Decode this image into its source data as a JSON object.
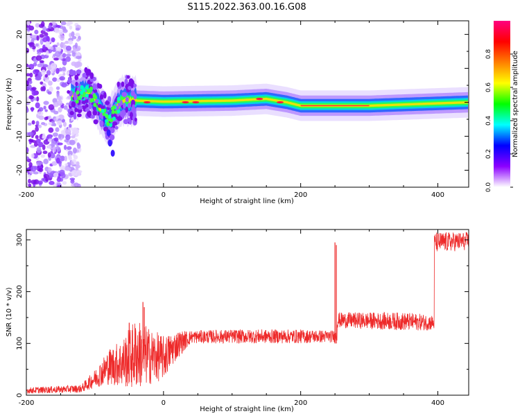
{
  "title": "S115.2022.363.00.16.G08",
  "chart_data": [
    {
      "type": "heatmap",
      "xlabel": "Height of straight line (km)",
      "ylabel": "Frequency (Hz)",
      "xlim": [
        -200,
        445
      ],
      "ylim": [
        -25,
        24
      ],
      "xticks": [
        -200,
        0,
        200,
        400
      ],
      "yticks": [
        -20,
        -10,
        0,
        10,
        20
      ],
      "colorbar": {
        "label": "Normalized spectral amplitude",
        "range": [
          0,
          1
        ],
        "ticks": [
          0.0,
          0.2,
          0.4,
          0.6,
          0.8
        ],
        "tick_labels": [
          "0.0",
          "0.2",
          "0.4",
          "0.6",
          "0.8"
        ],
        "colormap": [
          "#ffffff",
          "#8c00ff",
          "#0000ff",
          "#00ffff",
          "#00ff00",
          "#ffff00",
          "#ff7f00",
          "#ff0000",
          "#ff0080"
        ]
      },
      "ridge": [
        {
          "x": -130,
          "f": 2
        },
        {
          "x": -110,
          "f": 3
        },
        {
          "x": -100,
          "f": 1
        },
        {
          "x": -90,
          "f": -3
        },
        {
          "x": -80,
          "f": -6
        },
        {
          "x": -70,
          "f": -2
        },
        {
          "x": -60,
          "f": 0.5
        },
        {
          "x": -40,
          "f": 0.5
        },
        {
          "x": 0,
          "f": 0.2
        },
        {
          "x": 100,
          "f": 0.5
        },
        {
          "x": 150,
          "f": 1
        },
        {
          "x": 180,
          "f": 0
        },
        {
          "x": 200,
          "f": -1
        },
        {
          "x": 300,
          "f": -1
        },
        {
          "x": 445,
          "f": 0
        }
      ],
      "hotspots": [
        {
          "x": -24,
          "f": 0
        },
        {
          "x": 32,
          "f": 0
        },
        {
          "x": 47,
          "f": 0
        },
        {
          "x": 140,
          "f": 1
        },
        {
          "x": 170,
          "f": 0
        }
      ],
      "branch": [
        {
          "x": -85,
          "f": -5
        },
        {
          "x": -80,
          "f": -9
        },
        {
          "x": -78,
          "f": -12
        },
        {
          "x": -74,
          "f": -15
        }
      ],
      "noise_region": {
        "xmin": -200,
        "xmax": -130
      }
    },
    {
      "type": "line",
      "xlabel": "Height of straight line (km)",
      "ylabel": "SNR (10 * v/v)",
      "xlim": [
        -200,
        445
      ],
      "ylim": [
        0,
        320
      ],
      "xticks": [
        -200,
        0,
        200,
        400
      ],
      "yticks": [
        0,
        100,
        200,
        300
      ],
      "color": "#ee2a2a",
      "envelope": [
        {
          "x": -200,
          "lo": 3,
          "hi": 15
        },
        {
          "x": -120,
          "lo": 5,
          "hi": 20
        },
        {
          "x": -100,
          "lo": 15,
          "hi": 50
        },
        {
          "x": -80,
          "lo": 20,
          "hi": 90
        },
        {
          "x": -60,
          "lo": 15,
          "hi": 110
        },
        {
          "x": -40,
          "lo": 10,
          "hi": 150
        },
        {
          "x": -20,
          "lo": 20,
          "hi": 130
        },
        {
          "x": 0,
          "lo": 30,
          "hi": 115
        },
        {
          "x": 20,
          "lo": 70,
          "hi": 125
        },
        {
          "x": 40,
          "lo": 100,
          "hi": 125
        },
        {
          "x": 100,
          "lo": 100,
          "hi": 127
        },
        {
          "x": 200,
          "lo": 100,
          "hi": 127
        },
        {
          "x": 253,
          "lo": 102,
          "hi": 125
        },
        {
          "x": 254,
          "lo": 130,
          "hi": 160
        },
        {
          "x": 350,
          "lo": 125,
          "hi": 160
        },
        {
          "x": 395,
          "lo": 125,
          "hi": 155
        },
        {
          "x": 396,
          "lo": 275,
          "hi": 315
        },
        {
          "x": 445,
          "lo": 280,
          "hi": 315
        }
      ],
      "spikes": [
        {
          "x": -50,
          "y": 140
        },
        {
          "x": -30,
          "y": 180
        },
        {
          "x": -28,
          "y": 170
        },
        {
          "x": 250,
          "y": 295
        },
        {
          "x": 252,
          "y": 290
        }
      ]
    }
  ]
}
